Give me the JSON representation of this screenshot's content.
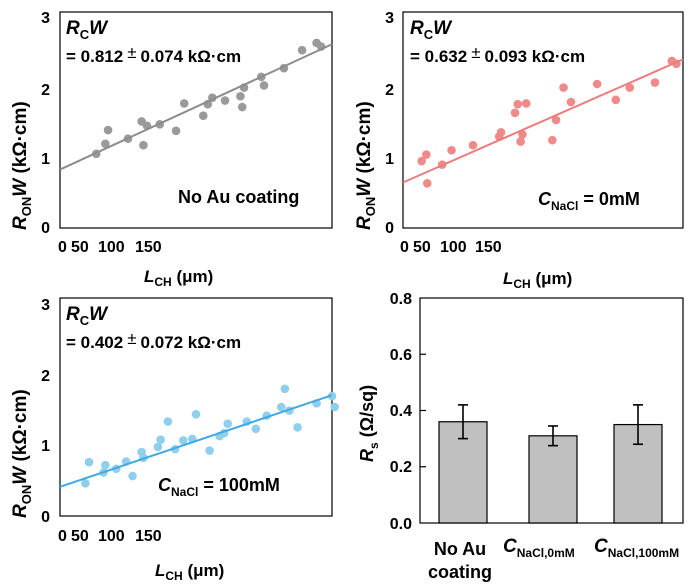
{
  "chart_data": [
    {
      "type": "scatter",
      "panel": "top-left",
      "color": "#9a9a9a",
      "ylabel": {
        "main": "R",
        "sub": "ON",
        "rest": "W (kΩ·cm)"
      },
      "xlabel": {
        "main": "L",
        "sub": "CH",
        "rest": " (μm)"
      },
      "xticks": [
        "0",
        "50",
        "100",
        "150"
      ],
      "yticks": [
        "0",
        "1",
        "2",
        "3"
      ],
      "ylim": [
        0,
        3
      ],
      "xlim": [
        0,
        300
      ],
      "annotation": {
        "main": "R",
        "sub": "C",
        "rest": "W",
        "value": "= 0.812",
        "pm": "±",
        "err": "0.074 kΩ·cm"
      },
      "condition": {
        "text": "No Au coating"
      },
      "fit": {
        "intercept": 0.812,
        "slope": 0.0058
      },
      "points": [
        [
          40,
          1.03
        ],
        [
          50,
          1.17
        ],
        [
          53,
          1.36
        ],
        [
          75,
          1.24
        ],
        [
          90,
          1.48
        ],
        [
          92,
          1.15
        ],
        [
          96,
          1.42
        ],
        [
          110,
          1.44
        ],
        [
          128,
          1.35
        ],
        [
          137,
          1.73
        ],
        [
          158,
          1.56
        ],
        [
          163,
          1.72
        ],
        [
          168,
          1.81
        ],
        [
          182,
          1.77
        ],
        [
          199,
          1.83
        ],
        [
          201,
          1.68
        ],
        [
          203,
          1.95
        ],
        [
          222,
          2.1
        ],
        [
          225,
          1.98
        ],
        [
          247,
          2.22
        ],
        [
          267,
          2.47
        ],
        [
          283,
          2.57
        ],
        [
          288,
          2.52
        ]
      ]
    },
    {
      "type": "scatter",
      "panel": "top-right",
      "color": "#f08a8a",
      "ylabel": {
        "main": "R",
        "sub": "ON",
        "rest": "W (kΩ·cm)"
      },
      "xlabel": {
        "main": "L",
        "sub": "CH",
        "rest": " (μm)"
      },
      "xticks": [
        "0",
        "50",
        "100",
        "150"
      ],
      "yticks": [
        "0",
        "1",
        "2",
        "3"
      ],
      "ylim": [
        0,
        3
      ],
      "xlim": [
        0,
        300
      ],
      "annotation": {
        "main": "R",
        "sub": "C",
        "rest": "W",
        "value": "= 0.632",
        "pm": "±",
        "err": "0.093 kΩ·cm"
      },
      "condition": {
        "main": "C",
        "sub": "NaCl",
        "rest": " = 0mM"
      },
      "fit": {
        "intercept": 0.632,
        "slope": 0.0057
      },
      "points": [
        [
          20,
          0.93
        ],
        [
          25,
          1.02
        ],
        [
          26,
          0.62
        ],
        [
          42,
          0.88
        ],
        [
          52,
          1.08
        ],
        [
          75,
          1.15
        ],
        [
          103,
          1.27
        ],
        [
          105,
          1.33
        ],
        [
          120,
          1.6
        ],
        [
          123,
          1.72
        ],
        [
          126,
          1.2
        ],
        [
          128,
          1.3
        ],
        [
          132,
          1.73
        ],
        [
          160,
          1.22
        ],
        [
          164,
          1.5
        ],
        [
          172,
          1.95
        ],
        [
          180,
          1.75
        ],
        [
          208,
          2.0
        ],
        [
          228,
          1.78
        ],
        [
          243,
          1.95
        ],
        [
          270,
          2.02
        ],
        [
          288,
          2.32
        ],
        [
          293,
          2.28
        ]
      ]
    },
    {
      "type": "scatter",
      "panel": "bottom-left",
      "color": "#8fcfee",
      "ylabel": {
        "main": "R",
        "sub": "ON",
        "rest": "W (kΩ·cm)"
      },
      "xlabel": {
        "main": "L",
        "sub": "CH",
        "rest": " (μm)"
      },
      "xticks": [
        "0",
        "50",
        "100",
        "150"
      ],
      "yticks": [
        "0",
        "1",
        "2",
        "3"
      ],
      "ylim": [
        0,
        3
      ],
      "xlim": [
        0,
        300
      ],
      "annotation": {
        "main": "R",
        "sub": "C",
        "rest": "W",
        "value": "= 0.402",
        "pm": "±",
        "err": "0.072 kΩ·cm"
      },
      "condition": {
        "main": "C",
        "sub": "NaCl",
        "rest": " = 100mM"
      },
      "fit": {
        "intercept": 0.402,
        "slope": 0.0042
      },
      "points": [
        [
          28,
          0.45
        ],
        [
          32,
          0.74
        ],
        [
          48,
          0.6
        ],
        [
          50,
          0.7
        ],
        [
          62,
          0.65
        ],
        [
          73,
          0.75
        ],
        [
          80,
          0.55
        ],
        [
          90,
          0.88
        ],
        [
          92,
          0.8
        ],
        [
          108,
          0.95
        ],
        [
          111,
          1.05
        ],
        [
          119,
          1.3
        ],
        [
          127,
          0.92
        ],
        [
          136,
          1.04
        ],
        [
          146,
          1.06
        ],
        [
          150,
          1.4
        ],
        [
          165,
          0.9
        ],
        [
          176,
          1.1
        ],
        [
          181,
          1.14
        ],
        [
          185,
          1.27
        ],
        [
          206,
          1.3
        ],
        [
          216,
          1.2
        ],
        [
          228,
          1.38
        ],
        [
          244,
          1.5
        ],
        [
          248,
          1.75
        ],
        [
          253,
          1.45
        ],
        [
          262,
          1.22
        ],
        [
          283,
          1.55
        ],
        [
          300,
          1.65
        ],
        [
          303,
          1.5
        ]
      ]
    },
    {
      "type": "bar",
      "panel": "bottom-right",
      "color": "#c0c0c0",
      "ylabel": {
        "main": "R",
        "sub": "s",
        "rest": " (Ω/sq)"
      },
      "yticks": [
        "0.0",
        "0.2",
        "0.4",
        "0.6",
        "0.8"
      ],
      "ylim": [
        0,
        0.8
      ],
      "categories": [
        {
          "line1": "No Au",
          "line2": "coating"
        },
        {
          "main": "C",
          "sub": "NaCl,0mM"
        },
        {
          "main": "C",
          "sub": "NaCl,100mM"
        }
      ],
      "values": [
        0.36,
        0.31,
        0.35
      ],
      "errors": [
        0.06,
        0.035,
        0.07
      ]
    }
  ]
}
